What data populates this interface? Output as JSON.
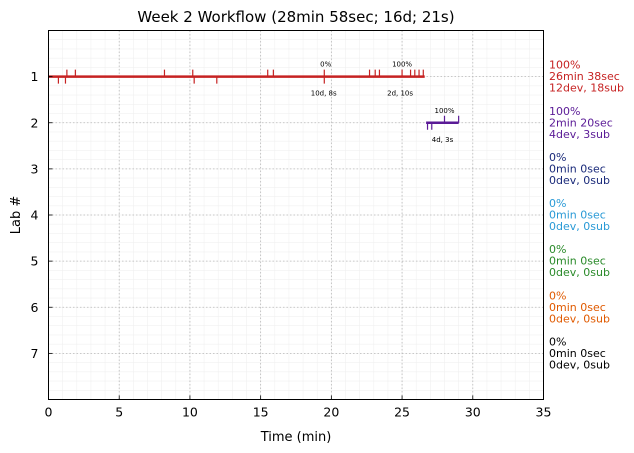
{
  "chart_data": {
    "type": "timeline",
    "title": "Week 2 Workflow (28min 58sec; 16d; 21s)",
    "xlabel": "Time (min)",
    "ylabel": "Lab #",
    "xlim": [
      0,
      35
    ],
    "ylim": [
      8,
      0
    ],
    "xticks": [
      0,
      5,
      10,
      15,
      20,
      25,
      30,
      35
    ],
    "yticks": [
      1,
      2,
      3,
      4,
      5,
      6,
      7
    ],
    "grid": true,
    "labs": [
      {
        "lab": 1,
        "color": "#c62222",
        "line_color": "#c62222",
        "start": 0.0,
        "end": 26.6,
        "percent": "100%",
        "time_text": "26min 38sec",
        "counts": "12dev, 18sub",
        "ticks_up": [
          1.3,
          1.9,
          8.2,
          10.2,
          15.5,
          15.9,
          19.5,
          22.7,
          23.1,
          23.4,
          25.0,
          25.6,
          25.9,
          26.2,
          26.5
        ],
        "ticks_down": [
          0.7,
          1.2,
          10.3,
          11.9,
          19.5
        ],
        "milestones": [
          {
            "x": 19.6,
            "percent": "0%",
            "detail": "10d, 8s"
          },
          {
            "x": 25.0,
            "percent": "100%",
            "detail": "2d, 10s"
          }
        ]
      },
      {
        "lab": 2,
        "color": "#5a1a96",
        "line_color": "#5a1a96",
        "start": 26.7,
        "end": 29.0,
        "percent": "100%",
        "time_text": "2min 20sec",
        "counts": "4dev, 3sub",
        "ticks_up": [
          28.0,
          29.0
        ],
        "ticks_down": [
          26.8,
          27.1
        ],
        "milestones": [
          {
            "x": 28.0,
            "percent": "100%",
            "detail": "4d, 3s"
          }
        ]
      },
      {
        "lab": 3,
        "color": "#1a2a7a",
        "percent": "0%",
        "time_text": "0min 0sec",
        "counts": "0dev, 0sub"
      },
      {
        "lab": 4,
        "color": "#2a9ad6",
        "percent": "0%",
        "time_text": "0min 0sec",
        "counts": "0dev, 0sub"
      },
      {
        "lab": 5,
        "color": "#2a8a2a",
        "percent": "0%",
        "time_text": "0min 0sec",
        "counts": "0dev, 0sub"
      },
      {
        "lab": 6,
        "color": "#e05a00",
        "percent": "0%",
        "time_text": "0min 0sec",
        "counts": "0dev, 0sub"
      },
      {
        "lab": 7,
        "color": "#000000",
        "percent": "0%",
        "time_text": "0min 0sec",
        "counts": "0dev, 0sub"
      }
    ]
  }
}
